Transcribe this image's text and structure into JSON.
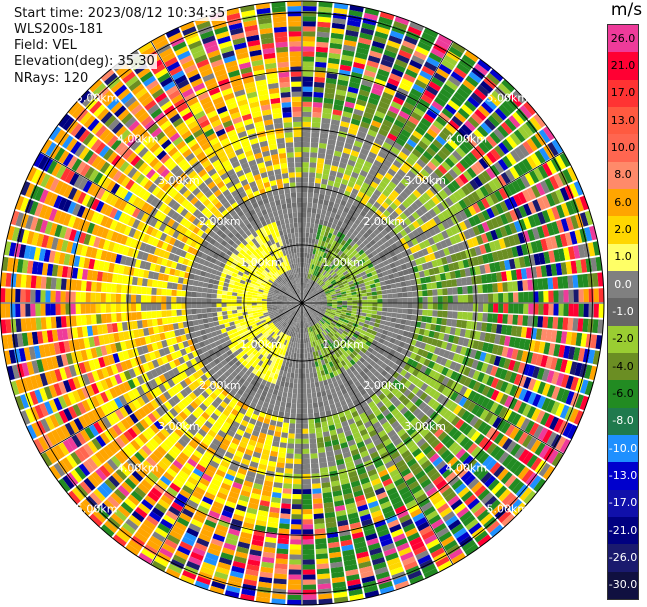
{
  "info": {
    "start_time": "Start time: 2023/08/12 10:34:35",
    "station": "WLS200s-181",
    "field": "Field: VEL",
    "elevation": "Elevation(deg): 35.30",
    "nrays": "NRays: 120"
  },
  "colorbar": {
    "unit": "m/s",
    "labels": [
      "26.0",
      "21.0",
      "17.0",
      "13.0",
      "10.0",
      "8.0",
      "6.0",
      "2.0",
      "1.0",
      "0.0",
      "-1.0",
      "-2.0",
      "-4.0",
      "-6.0",
      "-8.0",
      "-10.0",
      "-13.0",
      "-17.0",
      "-21.0",
      "-26.0",
      "-30.0"
    ],
    "colors": [
      "#ee3b9a",
      "#ff0033",
      "#ff3333",
      "#ff5a40",
      "#ff6650",
      "#ff8a6a",
      "#ffa500",
      "#ffd700",
      "#ffff66",
      "#808080",
      "#666666",
      "#9acd32",
      "#6b8e23",
      "#228b22",
      "#1f7a4d",
      "#1e90ff",
      "#0000cd",
      "#1010aa",
      "#000080",
      "#1a1a6e",
      "#101040"
    ]
  },
  "ring_labels": [
    "1.00km",
    "2.00km",
    "3.00km",
    "4.00km",
    "5.00km"
  ],
  "chart_data": {
    "type": "heatmap",
    "title": "",
    "projection": "polar (PPI)",
    "field": "VEL",
    "unit": "m/s",
    "nrays": 120,
    "range_rings_km": [
      1,
      2,
      3,
      4,
      5
    ],
    "max_range_km": 5.2,
    "color_scale_min": -30,
    "color_scale_max": 26,
    "description_of_pattern": "near-zero velocities (gray) within ~2 km; positive (yellow/orange) on west side, negative (green) on east side near center; noisy multicolor beyond ~3.5 km"
  }
}
